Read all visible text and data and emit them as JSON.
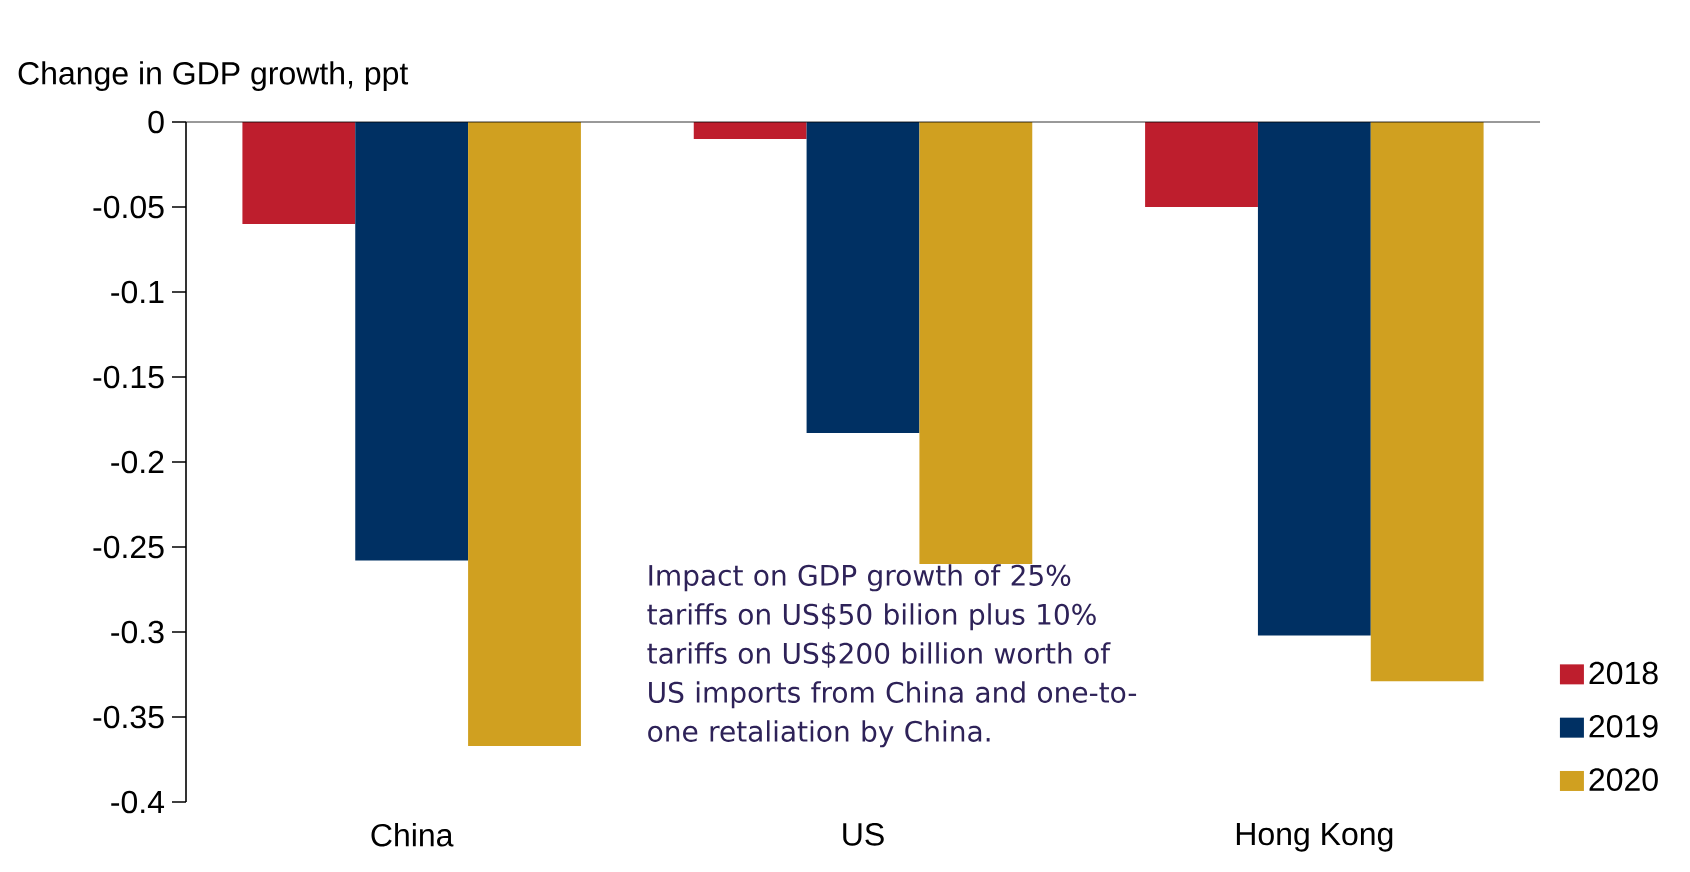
{
  "chart_data": {
    "type": "bar",
    "ylabel": "Change in GDP growth, ppt",
    "categories": [
      "China",
      "US",
      "Hong Kong"
    ],
    "series": [
      {
        "name": "2018",
        "color": "#be1e2d",
        "values": [
          -0.06,
          -0.01,
          -0.05
        ]
      },
      {
        "name": "2019",
        "color": "#003063",
        "values": [
          -0.258,
          -0.183,
          -0.302
        ]
      },
      {
        "name": "2020",
        "color": "#d0a020",
        "values": [
          -0.367,
          -0.26,
          -0.329
        ]
      }
    ],
    "ylim": [
      -0.4,
      0
    ],
    "yticks": [
      0,
      -0.05,
      -0.1,
      -0.15,
      -0.2,
      -0.25,
      -0.3,
      -0.35,
      -0.4
    ],
    "grid": false,
    "legend": "bottom right",
    "annotations": [
      "Impact on GDP growth of 25% tariffs on US$50 bilion plus 10% tariffs on US$200 billion worth of US imports from China and one-to-one retaliation by China."
    ]
  }
}
